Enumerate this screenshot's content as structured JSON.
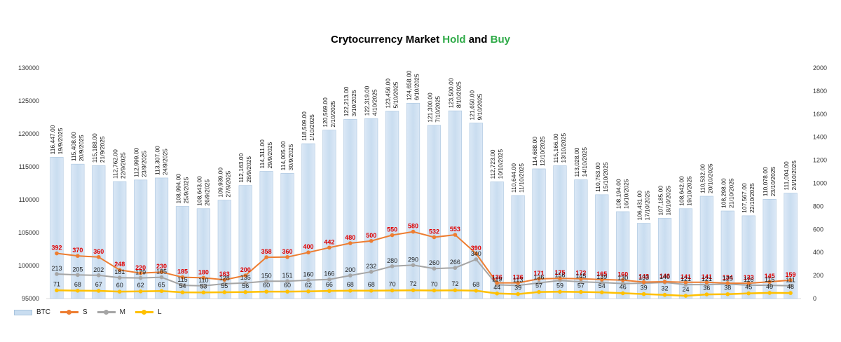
{
  "title": {
    "prefix": "Crytocurrency Market ",
    "hold": "Hold",
    "mid": " and ",
    "buy": "Buy"
  },
  "colors": {
    "btc": "#c9ddf0",
    "btc_edge": "#a9c4de",
    "s": "#ed7d31",
    "m": "#a5a5a5",
    "l": "#ffc000",
    "hold": "#2eaa47",
    "s_label": "#e00000"
  },
  "chart_data": {
    "type": "bar",
    "left_axis": {
      "min": 95000,
      "max": 130000,
      "step": 5000,
      "ticks": [
        "95000",
        "100000",
        "105000",
        "110000",
        "115000",
        "120000",
        "125000",
        "130000"
      ]
    },
    "right_axis": {
      "min": 0,
      "max": 2000,
      "step": 200,
      "ticks": [
        "0",
        "200",
        "400",
        "600",
        "800",
        "1000",
        "1200",
        "1400",
        "1600",
        "1800",
        "2000"
      ]
    },
    "legend": [
      "BTC",
      "S",
      "M",
      "L"
    ],
    "legend_position": "bottom-left",
    "points": [
      {
        "date": "19/9/2025",
        "btc": 116447,
        "btc_label": "116,447.00",
        "s": 392,
        "m": 213,
        "l": 71
      },
      {
        "date": "20/9/2025",
        "btc": 115408,
        "btc_label": "115,408.00",
        "s": 370,
        "m": 205,
        "l": 68
      },
      {
        "date": "21/9/2025",
        "btc": 115188,
        "btc_label": "115,188.00",
        "s": 360,
        "m": 202,
        "l": 67
      },
      {
        "date": "22/9/2025",
        "btc": 112762,
        "btc_label": "112,762.00",
        "s": 248,
        "m": 181,
        "l": 60
      },
      {
        "date": "23/9/2025",
        "btc": 112999,
        "btc_label": "112,999.00",
        "s": 220,
        "m": 179,
        "l": 62
      },
      {
        "date": "24/9/2025",
        "btc": 113307,
        "btc_label": "113,307.00",
        "s": 230,
        "m": 185,
        "l": 65
      },
      {
        "date": "25/9/2025",
        "btc": 108994,
        "btc_label": "108,994.00",
        "s": 185,
        "m": 115,
        "l": 54
      },
      {
        "date": "26/9/2025",
        "btc": 108643,
        "btc_label": "108,643.00",
        "s": 180,
        "m": 110,
        "l": 53
      },
      {
        "date": "27/9/2025",
        "btc": 109939,
        "btc_label": "109,939.00",
        "s": 163,
        "m": 128,
        "l": 55
      },
      {
        "date": "28/9/2025",
        "btc": 112163,
        "btc_label": "112,163.00",
        "s": 200,
        "m": 135,
        "l": 56
      },
      {
        "date": "29/9/2025",
        "btc": 114311,
        "btc_label": "114,311.00",
        "s": 358,
        "m": 150,
        "l": 60
      },
      {
        "date": "30/9/2025",
        "btc": 114005,
        "btc_label": "114,005.00",
        "s": 360,
        "m": 151,
        "l": 60
      },
      {
        "date": "1/10/2025",
        "btc": 118509,
        "btc_label": "118,509.00",
        "s": 400,
        "m": 160,
        "l": 62
      },
      {
        "date": "2/10/2025",
        "btc": 120569,
        "btc_label": "120,569.00",
        "s": 442,
        "m": 166,
        "l": 66
      },
      {
        "date": "3/10/2025",
        "btc": 122213,
        "btc_label": "122,213.00",
        "s": 480,
        "m": 200,
        "l": 68
      },
      {
        "date": "4/10/2025",
        "btc": 122319,
        "btc_label": "122,319.00",
        "s": 500,
        "m": 232,
        "l": 68
      },
      {
        "date": "5/10/2025",
        "btc": 123456,
        "btc_label": "123,456.00",
        "s": 550,
        "m": 280,
        "l": 70
      },
      {
        "date": "6/10/2025",
        "btc": 124658,
        "btc_label": "124,658.00",
        "s": 580,
        "m": 290,
        "l": 72
      },
      {
        "date": "7/10/2025",
        "btc": 121300,
        "btc_label": "121,300.00",
        "s": 532,
        "m": 260,
        "l": 70
      },
      {
        "date": "8/10/2025",
        "btc": 123500,
        "btc_label": "123,500.00",
        "s": 553,
        "m": 266,
        "l": 72
      },
      {
        "date": "9/10/2025",
        "btc": 121650,
        "btc_label": "121,650.00",
        "s": 390,
        "m": 340,
        "l": 68
      },
      {
        "date": "10/10/2025",
        "btc": 112723,
        "btc_label": "112,723.00",
        "s": 136,
        "m": 119,
        "l": 44
      },
      {
        "date": "11/10/2025",
        "btc": 110644,
        "btc_label": "110,644.00",
        "s": 136,
        "m": 113,
        "l": 39
      },
      {
        "date": "12/10/2025",
        "btc": 114688,
        "btc_label": "114,688.00",
        "s": 171,
        "m": 136,
        "l": 57
      },
      {
        "date": "13/10/2025",
        "btc": 115166,
        "btc_label": "115,166.00",
        "s": 175,
        "m": 156,
        "l": 59
      },
      {
        "date": "14/10/2025",
        "btc": 113028,
        "btc_label": "113,028.00",
        "s": 172,
        "m": 145,
        "l": 57
      },
      {
        "date": "15/10/2025",
        "btc": 110763,
        "btc_label": "110,763.00",
        "s": 165,
        "m": 139,
        "l": 54
      },
      {
        "date": "16/10/2025",
        "btc": 108194,
        "btc_label": "108,194.00",
        "s": 160,
        "m": 130,
        "l": 46
      },
      {
        "date": "17/10/2025",
        "btc": 106431,
        "btc_label": "106,431.00",
        "s": 143,
        "m": 133,
        "l": 39
      },
      {
        "date": "18/10/2025",
        "btc": 107185,
        "btc_label": "107,185.00",
        "s": 146,
        "m": 140,
        "l": 32
      },
      {
        "date": "19/10/2025",
        "btc": 108642,
        "btc_label": "108,642.00",
        "s": 141,
        "m": 121,
        "l": 24
      },
      {
        "date": "20/10/2025",
        "btc": 110532,
        "btc_label": "110,532.00",
        "s": 141,
        "m": 121,
        "l": 36
      },
      {
        "date": "21/10/2025",
        "btc": 108298,
        "btc_label": "108,298.00",
        "s": 134,
        "m": 125,
        "l": 38
      },
      {
        "date": "22/10/2025",
        "btc": 107567,
        "btc_label": "107,567.00",
        "s": 133,
        "m": 116,
        "l": 45
      },
      {
        "date": "23/10/2025",
        "btc": 110078,
        "btc_label": "110,078.00",
        "s": 145,
        "m": 115,
        "l": 49
      },
      {
        "date": "24/10/2025",
        "btc": 111004,
        "btc_label": "111,004.00",
        "s": 159,
        "m": 111,
        "l": 48
      }
    ]
  }
}
